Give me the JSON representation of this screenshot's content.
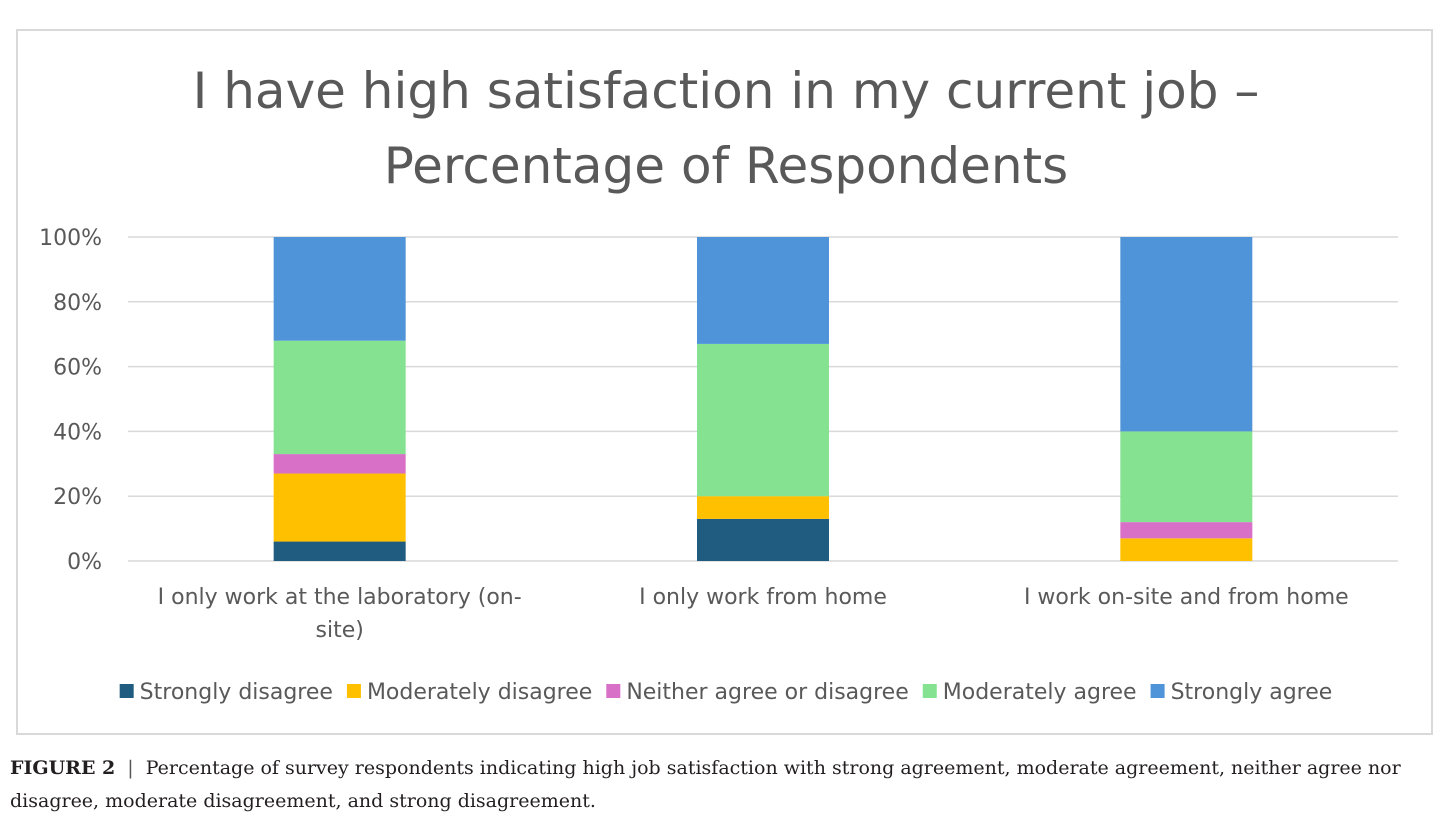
{
  "chart_data": {
    "type": "bar",
    "stacked": true,
    "title": "I have high satisfaction in my current job – Percentage of Respondents",
    "title_lines": [
      "I have high satisfaction in my current job –",
      "Percentage of Respondents"
    ],
    "categories": [
      "I  only work at the laboratory (on-site)",
      "I only work from home",
      "I work on-site and from home"
    ],
    "category_lines": [
      [
        "I  only work at the laboratory (on-",
        "site)"
      ],
      [
        "I only work from home"
      ],
      [
        "I work on-site and from home"
      ]
    ],
    "series": [
      {
        "name": "Strongly disagree",
        "color": "#1f5c80",
        "values": [
          6,
          13,
          0
        ]
      },
      {
        "name": "Moderately disagree",
        "color": "#ffc000",
        "values": [
          21,
          7,
          7
        ]
      },
      {
        "name": "Neither agree or disagree",
        "color": "#d870c8",
        "values": [
          6,
          0,
          5
        ]
      },
      {
        "name": "Moderately agree",
        "color": "#84e291",
        "values": [
          35,
          47,
          28
        ]
      },
      {
        "name": "Strongly agree",
        "color": "#4f94d8",
        "values": [
          32,
          33,
          60
        ]
      }
    ],
    "yticks": [
      "0%",
      "20%",
      "40%",
      "60%",
      "80%",
      "100%"
    ],
    "ylim": [
      0,
      100
    ],
    "grid": true,
    "legend_position": "bottom"
  },
  "caption": {
    "label": "FIGURE 2",
    "separator": "|",
    "text": "Percentage of survey respondents indicating high job satisfaction with strong agreement, moderate agreement, neither agree nor disagree, moderate disagreement, and strong disagreement."
  }
}
